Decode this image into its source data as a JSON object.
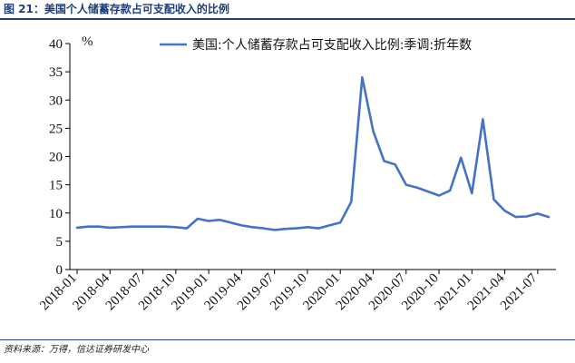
{
  "figure": {
    "title": "图 21：美国个人储蓄存款占可支配收入的比例",
    "source": "资料来源：万得，信达证券研发中心"
  },
  "chart_data": {
    "type": "line",
    "title": "",
    "xlabel": "",
    "ylabel": "%",
    "ylim": [
      0,
      40
    ],
    "yticks": [
      0,
      5,
      10,
      15,
      20,
      25,
      30,
      35,
      40
    ],
    "xticks": [
      "2018-01",
      "2018-04",
      "2018-07",
      "2018-10",
      "2019-01",
      "2019-04",
      "2019-07",
      "2019-10",
      "2020-01",
      "2020-04",
      "2020-07",
      "2020-10",
      "2021-01",
      "2021-04",
      "2021-07"
    ],
    "legend_position": "top-right",
    "grid": false,
    "color": "#4472c4",
    "x": [
      "2018-01",
      "2018-02",
      "2018-03",
      "2018-04",
      "2018-05",
      "2018-06",
      "2018-07",
      "2018-08",
      "2018-09",
      "2018-10",
      "2018-11",
      "2018-12",
      "2019-01",
      "2019-02",
      "2019-03",
      "2019-04",
      "2019-05",
      "2019-06",
      "2019-07",
      "2019-08",
      "2019-09",
      "2019-10",
      "2019-11",
      "2019-12",
      "2020-01",
      "2020-02",
      "2020-03",
      "2020-04",
      "2020-05",
      "2020-06",
      "2020-07",
      "2020-08",
      "2020-09",
      "2020-10",
      "2020-11",
      "2020-12",
      "2021-01",
      "2021-02",
      "2021-03",
      "2021-04",
      "2021-05",
      "2021-06",
      "2021-07",
      "2021-08"
    ],
    "series": [
      {
        "name": "美国:个人储蓄存款占可支配收入比例:季调:折年数",
        "values": [
          7.4,
          7.6,
          7.6,
          7.4,
          7.5,
          7.6,
          7.6,
          7.6,
          7.6,
          7.5,
          7.3,
          9.0,
          8.6,
          8.8,
          8.3,
          7.8,
          7.5,
          7.3,
          7.0,
          7.2,
          7.3,
          7.5,
          7.3,
          7.8,
          8.3,
          12.0,
          34.0,
          24.5,
          19.2,
          18.6,
          15.0,
          14.5,
          13.8,
          13.1,
          14.0,
          19.8,
          13.5,
          26.6,
          12.4,
          10.4,
          9.3,
          9.4,
          9.9,
          9.3
        ]
      }
    ]
  }
}
